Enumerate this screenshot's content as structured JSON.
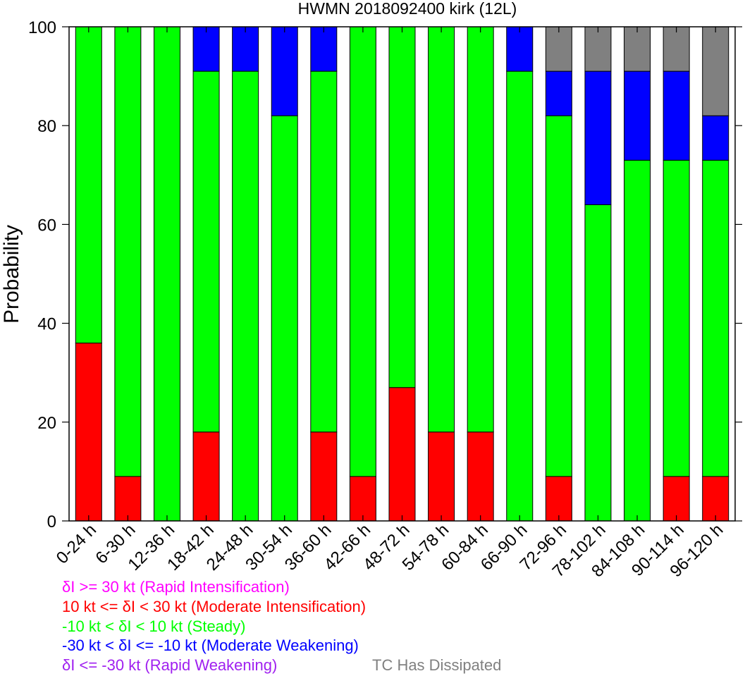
{
  "chart_data": {
    "type": "bar",
    "stacked": true,
    "title": "HWMN 2018092400 kirk (12L)",
    "ylabel": "Probability",
    "xlabel": "",
    "ylim": [
      0,
      100
    ],
    "yticks": [
      "0",
      "20",
      "40",
      "60",
      "80",
      "100"
    ],
    "categories": [
      "0-24 h",
      "6-30 h",
      "12-36 h",
      "18-42 h",
      "24-48 h",
      "30-54 h",
      "36-60 h",
      "42-66 h",
      "48-72 h",
      "54-78 h",
      "60-84 h",
      "66-90 h",
      "72-96 h",
      "78-102 h",
      "84-108 h",
      "90-114 h",
      "96-120 h"
    ],
    "series": [
      {
        "key": "rapid_intensification",
        "color": "#ff00ff",
        "values": [
          0,
          0,
          0,
          0,
          0,
          0,
          0,
          0,
          0,
          0,
          0,
          0,
          0,
          0,
          0,
          0,
          0
        ]
      },
      {
        "key": "moderate_intensification",
        "color": "#ff0000",
        "values": [
          36,
          9,
          0,
          18,
          0,
          0,
          18,
          9,
          27,
          18,
          18,
          0,
          9,
          0,
          0,
          9,
          9
        ]
      },
      {
        "key": "steady",
        "color": "#00ff00",
        "values": [
          64,
          91,
          100,
          73,
          91,
          82,
          73,
          91,
          73,
          82,
          82,
          91,
          73,
          64,
          73,
          64,
          64
        ]
      },
      {
        "key": "moderate_weakening",
        "color": "#0000ff",
        "values": [
          0,
          0,
          0,
          9,
          9,
          18,
          9,
          0,
          0,
          0,
          0,
          9,
          9,
          27,
          18,
          18,
          9
        ]
      },
      {
        "key": "rapid_weakening",
        "color": "#a020f0",
        "values": [
          0,
          0,
          0,
          0,
          0,
          0,
          0,
          0,
          0,
          0,
          0,
          0,
          0,
          0,
          0,
          0,
          0
        ]
      },
      {
        "key": "dissipated",
        "color": "#808080",
        "values": [
          0,
          0,
          0,
          0,
          0,
          0,
          0,
          0,
          0,
          0,
          0,
          0,
          9,
          9,
          9,
          9,
          18
        ]
      }
    ],
    "legend": [
      {
        "text": "δI >= 30 kt (Rapid Intensification)",
        "color": "#ff00ff"
      },
      {
        "text": "10 kt <= δI < 30 kt (Moderate Intensification)",
        "color": "#ff0000"
      },
      {
        "text": "-10 kt < δI < 10 kt (Steady)",
        "color": "#00ff00"
      },
      {
        "text": "-30 kt < δI <= -10 kt (Moderate Weakening)",
        "color": "#0000ff"
      },
      {
        "text": "δI <= -30 kt (Rapid Weakening)",
        "color": "#a020f0"
      },
      {
        "text": "TC Has Dissipated",
        "color": "#808080"
      }
    ],
    "grid": false
  }
}
